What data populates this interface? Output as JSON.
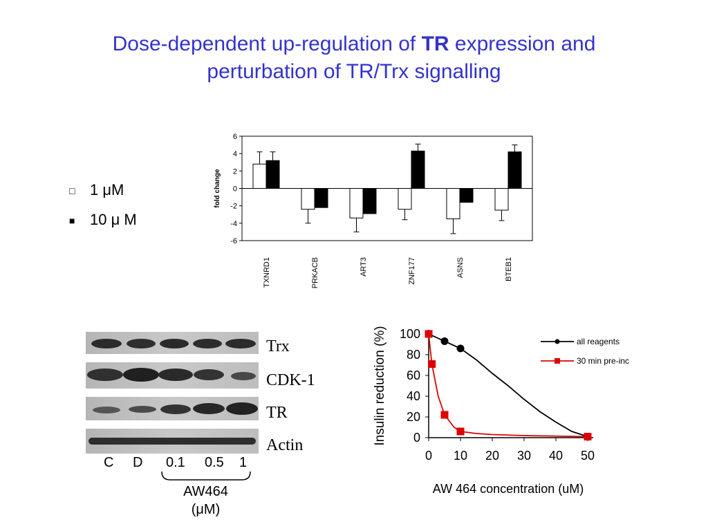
{
  "slide": {
    "title_part1": "Dose-dependent up-regulation of ",
    "title_bold": "TR",
    "title_part2": " expression and",
    "title_line2": "perturbation of TR/Trx signalling"
  },
  "legend": [
    {
      "marker": "□",
      "label": "1 μM"
    },
    {
      "marker": "■",
      "label": "10 μ M"
    }
  ],
  "blot": {
    "rows": [
      "Trx",
      "CDK-1",
      "TR",
      "Actin"
    ],
    "lanes": [
      "C",
      "D",
      "0.1",
      "0.5",
      "1"
    ],
    "group_label": "AW464",
    "group_unit": "(μM)"
  },
  "chart_data": [
    {
      "type": "bar",
      "ylabel": "fold change",
      "ylim": [
        -6,
        6
      ],
      "yticks": [
        6,
        4,
        2,
        0,
        -2,
        -4,
        -6
      ],
      "categories": [
        "TXNRD1",
        "PRKACB",
        "ART3",
        "ZNF177",
        "ASNS",
        "BTEB1"
      ],
      "series": [
        {
          "name": "1 μM",
          "fill": "#ffffff",
          "values": [
            2.8,
            -2.4,
            -3.4,
            -2.4,
            -3.5,
            -2.5
          ],
          "errors": [
            1.4,
            1.6,
            1.6,
            1.2,
            1.7,
            1.2
          ]
        },
        {
          "name": "10 μ M",
          "fill": "#000000",
          "values": [
            3.2,
            -2.2,
            -2.9,
            4.3,
            -1.6,
            4.2
          ],
          "errors": [
            1.0,
            0,
            0,
            0.8,
            0,
            0.8
          ]
        }
      ],
      "grid": false
    },
    {
      "type": "line",
      "xlabel": "AW 464 concentration (uM)",
      "ylabel": "Insulin reduction (%)",
      "xlim": [
        0,
        50
      ],
      "ylim": [
        0,
        100
      ],
      "xticks": [
        0,
        10,
        20,
        30,
        40,
        50
      ],
      "yticks": [
        0,
        20,
        40,
        60,
        80,
        100
      ],
      "legend_position": "top-right",
      "series": [
        {
          "name": "all reagents",
          "color": "#000000",
          "marker": "circle",
          "points": [
            [
              0,
              100
            ],
            [
              5,
              93
            ],
            [
              10,
              86
            ],
            [
              50,
              1
            ]
          ],
          "curve": [
            [
              0,
              100
            ],
            [
              5,
              93
            ],
            [
              10,
              86
            ],
            [
              15,
              75
            ],
            [
              20,
              62
            ],
            [
              25,
              50
            ],
            [
              30,
              37
            ],
            [
              35,
              25
            ],
            [
              40,
              15
            ],
            [
              45,
              6
            ],
            [
              50,
              1
            ]
          ]
        },
        {
          "name": "30 min pre-inc",
          "color": "#dd0000",
          "marker": "square",
          "points": [
            [
              0,
              100
            ],
            [
              1,
              71
            ],
            [
              5,
              22
            ],
            [
              10,
              6
            ],
            [
              50,
              1
            ]
          ],
          "curve": [
            [
              0,
              100
            ],
            [
              1,
              71
            ],
            [
              3,
              40
            ],
            [
              5,
              22
            ],
            [
              8,
              10
            ],
            [
              10,
              6
            ],
            [
              15,
              4
            ],
            [
              20,
              3
            ],
            [
              30,
              2
            ],
            [
              40,
              1.5
            ],
            [
              50,
              1
            ]
          ]
        }
      ],
      "grid": false
    }
  ]
}
